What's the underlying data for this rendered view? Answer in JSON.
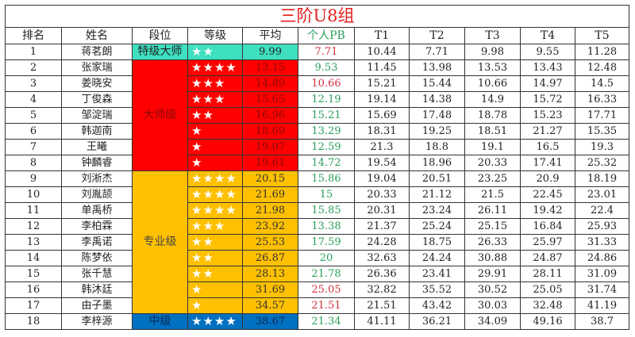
{
  "title": "三阶U8组",
  "headers": [
    "排名",
    "姓名",
    "段位",
    "等级",
    "平均",
    "个人PB",
    "T1",
    "T2",
    "T3",
    "T4",
    "T5"
  ],
  "tiers": [
    {
      "label": "特级大师",
      "start": 0,
      "span": 1,
      "color": "#3fe0c0"
    },
    {
      "label": "大师级",
      "start": 1,
      "span": 7,
      "color": "#ff0000"
    },
    {
      "label": "专业级",
      "start": 8,
      "span": 9,
      "color": "#ffc000"
    },
    {
      "label": "中级",
      "start": 17,
      "span": 1,
      "color": "#0070c0"
    }
  ],
  "pb_colors": {
    "green": "#2aa05a",
    "red": "#d03040"
  },
  "rows": [
    {
      "rank": "1",
      "name": "蒋茗朗",
      "stars": 2,
      "stars_text": "★★",
      "avg": "9.99",
      "pb": "7.71",
      "pb_color": "red",
      "t": [
        "10.44",
        "7.71",
        "9.98",
        "9.55",
        "11.28"
      ]
    },
    {
      "rank": "2",
      "name": "张家瑞",
      "stars": 4,
      "stars_text": "★★★★",
      "avg": "13.15",
      "pb": "9.53",
      "pb_color": "green",
      "t": [
        "11.45",
        "13.98",
        "13.53",
        "13.43",
        "12.48"
      ]
    },
    {
      "rank": "3",
      "name": "姜晓安",
      "stars": 3,
      "stars_text": "★★★",
      "avg": "14.89",
      "pb": "10.66",
      "pb_color": "red",
      "t": [
        "15.21",
        "15.44",
        "10.66",
        "14.97",
        "14.5"
      ]
    },
    {
      "rank": "4",
      "name": "丁俊森",
      "stars": 3,
      "stars_text": "★★★",
      "avg": "15.65",
      "pb": "12.19",
      "pb_color": "green",
      "t": [
        "19.14",
        "14.38",
        "14.9",
        "15.72",
        "16.33"
      ]
    },
    {
      "rank": "5",
      "name": "邹淀瑞",
      "stars": 2,
      "stars_text": "★★",
      "avg": "16.96",
      "pb": "15.21",
      "pb_color": "green",
      "t": [
        "15.69",
        "17.48",
        "18.78",
        "15.23",
        "17.71"
      ]
    },
    {
      "rank": "6",
      "name": "韩迦南",
      "stars": 1,
      "stars_text": "★",
      "avg": "18.69",
      "pb": "13.29",
      "pb_color": "green",
      "t": [
        "18.31",
        "19.25",
        "18.51",
        "21.27",
        "15.35"
      ]
    },
    {
      "rank": "7",
      "name": "王曦",
      "stars": 1,
      "stars_text": "★",
      "avg": "19.07",
      "pb": "12.59",
      "pb_color": "green",
      "t": [
        "21.3",
        "18.8",
        "19.1",
        "16.5",
        "19.3"
      ]
    },
    {
      "rank": "8",
      "name": "钟麟睿",
      "stars": 1,
      "stars_text": "★",
      "avg": "19.61",
      "pb": "14.72",
      "pb_color": "green",
      "t": [
        "19.54",
        "18.96",
        "20.33",
        "17.41",
        "25.32"
      ]
    },
    {
      "rank": "9",
      "name": "刘淅杰",
      "stars": 4,
      "stars_text": "★★★★",
      "avg": "20.15",
      "pb": "15.86",
      "pb_color": "green",
      "t": [
        "19.04",
        "20.51",
        "23.25",
        "20.9",
        "18.19"
      ]
    },
    {
      "rank": "10",
      "name": "刘胤颉",
      "stars": 4,
      "stars_text": "★★★★",
      "avg": "21.69",
      "pb": "15",
      "pb_color": "green",
      "t": [
        "20.33",
        "21.12",
        "21.5",
        "22.45",
        "23.01"
      ]
    },
    {
      "rank": "11",
      "name": "单禹桥",
      "stars": 4,
      "stars_text": "★★★★",
      "avg": "21.98",
      "pb": "15.85",
      "pb_color": "green",
      "t": [
        "20.31",
        "23.24",
        "26.11",
        "19.42",
        "22.4"
      ]
    },
    {
      "rank": "12",
      "name": "李柏霖",
      "stars": 3,
      "stars_text": "★★★",
      "avg": "23.92",
      "pb": "13.38",
      "pb_color": "green",
      "t": [
        "21.37",
        "25.24",
        "25.15",
        "16.84",
        "25.93"
      ]
    },
    {
      "rank": "13",
      "name": "李禹诺",
      "stars": 2,
      "stars_text": "★★",
      "avg": "25.53",
      "pb": "17.59",
      "pb_color": "green",
      "t": [
        "24.28",
        "18.75",
        "26.33",
        "25.97",
        "31.33"
      ]
    },
    {
      "rank": "14",
      "name": "陈梦依",
      "stars": 2,
      "stars_text": "★★",
      "avg": "26.87",
      "pb": "20",
      "pb_color": "green",
      "t": [
        "32.63",
        "24.24",
        "30.88",
        "24.87",
        "24.86"
      ]
    },
    {
      "rank": "15",
      "name": "张千慧",
      "stars": 2,
      "stars_text": "★★",
      "avg": "28.13",
      "pb": "21.78",
      "pb_color": "green",
      "t": [
        "26.36",
        "23.41",
        "29.91",
        "28.11",
        "31.09"
      ]
    },
    {
      "rank": "16",
      "name": "韩沐廷",
      "stars": 1,
      "stars_text": "★",
      "avg": "31.69",
      "pb": "25.05",
      "pb_color": "red",
      "t": [
        "32.82",
        "35.52",
        "30.52",
        "25.05",
        "31.74"
      ]
    },
    {
      "rank": "17",
      "name": "由子墨",
      "stars": 1,
      "stars_text": "★",
      "avg": "34.57",
      "pb": "21.51",
      "pb_color": "red",
      "t": [
        "21.51",
        "43.42",
        "30.03",
        "32.48",
        "41.19"
      ]
    },
    {
      "rank": "18",
      "name": "李梓源",
      "stars": 4,
      "stars_text": "★★★★",
      "avg": "38.67",
      "pb": "21.34",
      "pb_color": "green",
      "t": [
        "41.11",
        "36.21",
        "34.09",
        "49.16",
        "38.7"
      ]
    }
  ]
}
